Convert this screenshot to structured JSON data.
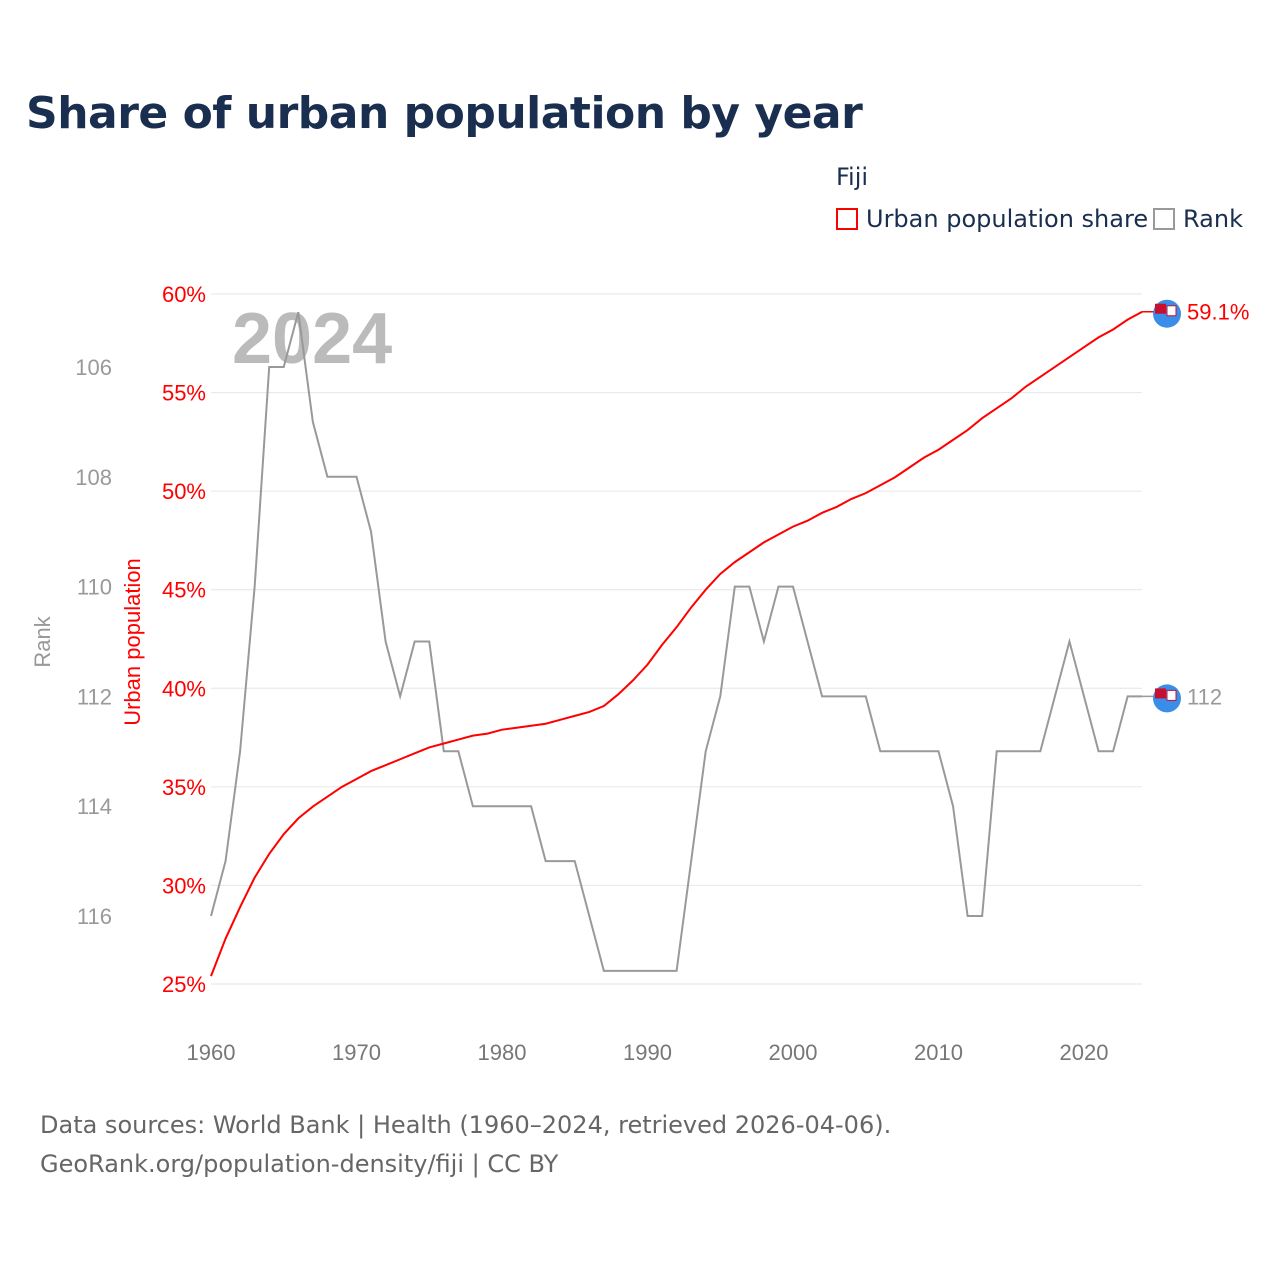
{
  "title": "Share of urban population by year",
  "legend": {
    "title": "Fiji",
    "items": [
      {
        "label": "Urban population share",
        "color": "#ff0000"
      },
      {
        "label": "Rank",
        "color": "#999999"
      }
    ]
  },
  "footer": {
    "line1": "Data sources: World Bank | Health (1960–2024, retrieved 2026-04-06).",
    "line2": "GeoRank.org/population-density/fiji | CC BY"
  },
  "chart_data": {
    "type": "line",
    "title": "Share of urban population by year",
    "year_watermark": "2024",
    "xlabel": "",
    "ylabel_left": "Urban population",
    "ylabel_rank": "Rank",
    "xlim": [
      1960,
      2024
    ],
    "ylim_share": [
      25,
      60
    ],
    "ylim_rank": [
      117.2,
      104.6
    ],
    "x_ticks": [
      1960,
      1970,
      1980,
      1990,
      2000,
      2010,
      2020
    ],
    "share_ticks": [
      "25%",
      "30%",
      "35%",
      "40%",
      "45%",
      "50%",
      "55%",
      "60%"
    ],
    "rank_ticks": [
      106,
      108,
      110,
      112,
      114,
      116
    ],
    "end_labels": {
      "share": "59.1%",
      "rank": "112"
    },
    "colors": {
      "share": "#ff0000",
      "rank": "#999999"
    },
    "x": [
      1960,
      1961,
      1962,
      1963,
      1964,
      1965,
      1966,
      1967,
      1968,
      1969,
      1970,
      1971,
      1972,
      1973,
      1974,
      1975,
      1976,
      1977,
      1978,
      1979,
      1980,
      1981,
      1982,
      1983,
      1984,
      1985,
      1986,
      1987,
      1988,
      1989,
      1990,
      1991,
      1992,
      1993,
      1994,
      1995,
      1996,
      1997,
      1998,
      1999,
      2000,
      2001,
      2002,
      2003,
      2004,
      2005,
      2006,
      2007,
      2008,
      2009,
      2010,
      2011,
      2012,
      2013,
      2014,
      2015,
      2016,
      2017,
      2018,
      2019,
      2020,
      2021,
      2022,
      2023,
      2024
    ],
    "series": [
      {
        "name": "Urban population share",
        "unit": "%",
        "values": [
          25.4,
          27.3,
          28.9,
          30.4,
          31.6,
          32.6,
          33.4,
          34.0,
          34.5,
          35.0,
          35.4,
          35.8,
          36.1,
          36.4,
          36.7,
          37.0,
          37.2,
          37.4,
          37.6,
          37.7,
          37.9,
          38.0,
          38.1,
          38.2,
          38.4,
          38.6,
          38.8,
          39.1,
          39.7,
          40.4,
          41.2,
          42.2,
          43.1,
          44.1,
          45.0,
          45.8,
          46.4,
          46.9,
          47.4,
          47.8,
          48.2,
          48.5,
          48.9,
          49.2,
          49.6,
          49.9,
          50.3,
          50.7,
          51.2,
          51.7,
          52.1,
          52.6,
          53.1,
          53.7,
          54.2,
          54.7,
          55.3,
          55.8,
          56.3,
          56.8,
          57.3,
          57.8,
          58.2,
          58.7,
          59.1
        ]
      },
      {
        "name": "Rank",
        "values": [
          116,
          115,
          113,
          110,
          106,
          106,
          105,
          107,
          108,
          108,
          108,
          109,
          111,
          112,
          111,
          111,
          113,
          113,
          114,
          114,
          114,
          114,
          114,
          115,
          115,
          115,
          116,
          117,
          117,
          117,
          117,
          117,
          117,
          115,
          113,
          112,
          110,
          110,
          111,
          110,
          110,
          111,
          112,
          112,
          112,
          112,
          113,
          113,
          113,
          113,
          113,
          114,
          116,
          116,
          113,
          113,
          113,
          113,
          112,
          111,
          112,
          113,
          113,
          112,
          112
        ]
      }
    ]
  }
}
